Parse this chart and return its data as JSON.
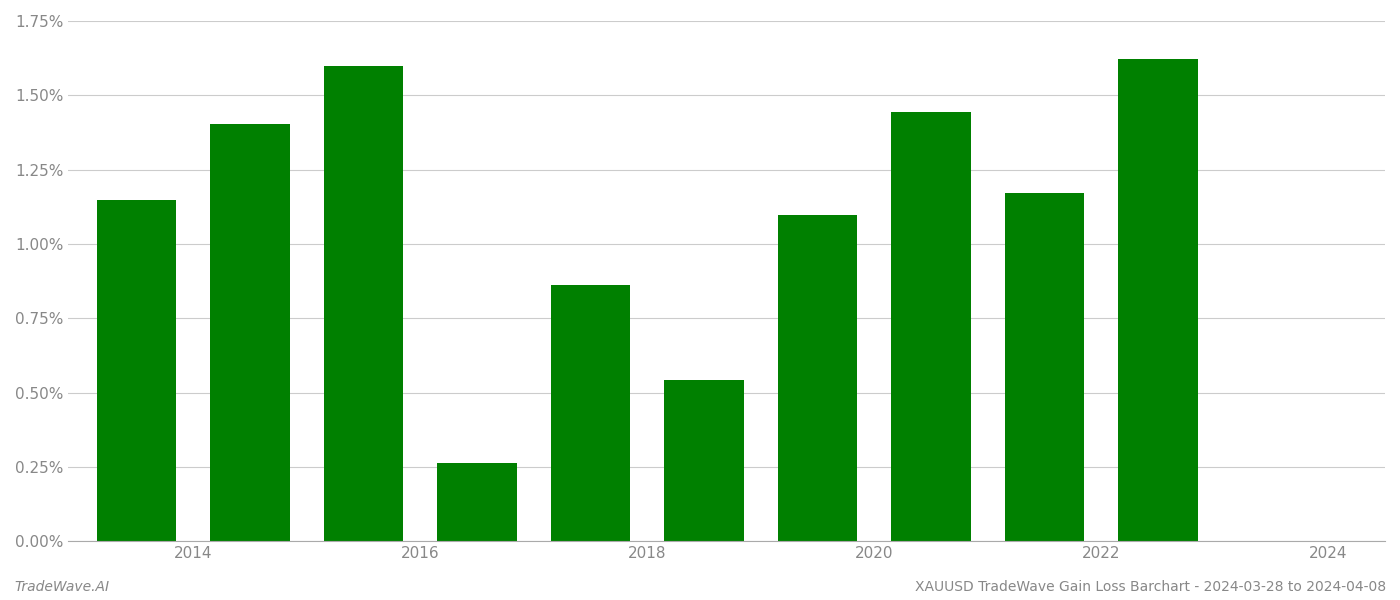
{
  "years": [
    2014,
    2015,
    2016,
    2017,
    2018,
    2019,
    2020,
    2021,
    2022,
    2023
  ],
  "values": [
    0.01148,
    0.01402,
    0.016,
    0.00262,
    0.00862,
    0.00542,
    0.01098,
    0.01443,
    0.01172,
    0.01622
  ],
  "bar_color": "#008000",
  "background_color": "#ffffff",
  "grid_color": "#cccccc",
  "footer_left": "TradeWave.AI",
  "footer_right": "XAUUSD TradeWave Gain Loss Barchart - 2024-03-28 to 2024-04-08",
  "ylim": [
    0,
    0.0175
  ],
  "yticks": [
    0.0,
    0.0025,
    0.005,
    0.0075,
    0.01,
    0.0125,
    0.015,
    0.0175
  ],
  "ytick_labels": [
    "0.00%",
    "0.25%",
    "0.50%",
    "0.75%",
    "1.00%",
    "1.25%",
    "1.50%",
    "1.75%"
  ],
  "tick_fontsize": 11,
  "footer_fontsize": 10,
  "bar_width": 0.7,
  "xtick_positions": [
    0.5,
    2.5,
    4.5,
    6.5,
    8.5,
    10.5
  ],
  "xtick_labels": [
    "2014",
    "2016",
    "2018",
    "2020",
    "2022",
    "2024"
  ]
}
